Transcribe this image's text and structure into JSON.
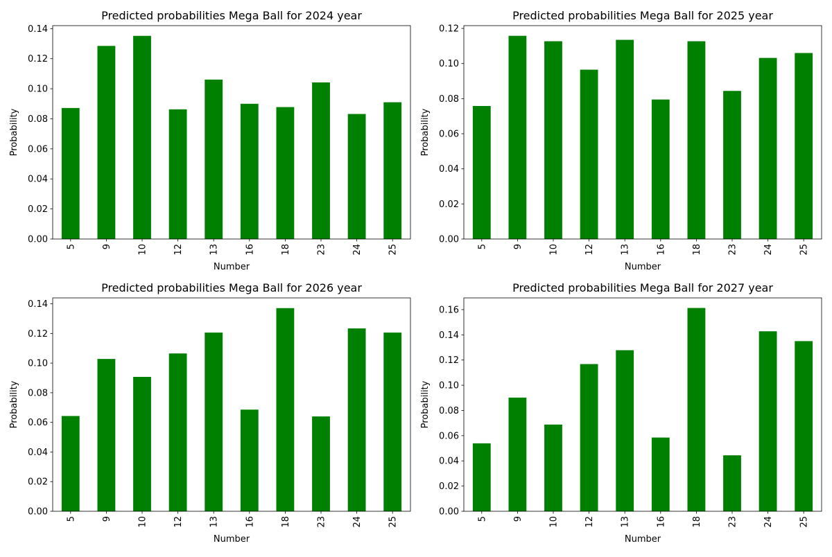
{
  "chart_data": [
    {
      "type": "bar",
      "title": "Predicted probabilities Mega Ball for 2024 year",
      "xlabel": "Number",
      "ylabel": "Probability",
      "categories": [
        "5",
        "9",
        "10",
        "12",
        "13",
        "16",
        "18",
        "23",
        "24",
        "25"
      ],
      "values": [
        0.0872,
        0.1285,
        0.1352,
        0.0863,
        0.1061,
        0.09,
        0.0878,
        0.1042,
        0.0832,
        0.091
      ],
      "ylim": [
        0,
        0.142
      ],
      "yticks": [
        "0.00",
        "0.02",
        "0.04",
        "0.06",
        "0.08",
        "0.10",
        "0.12",
        "0.14"
      ],
      "grid": false,
      "bar_color": "#008000"
    },
    {
      "type": "bar",
      "title": "Predicted probabilities Mega Ball for 2025 year",
      "xlabel": "Number",
      "ylabel": "Probability",
      "categories": [
        "5",
        "9",
        "10",
        "12",
        "13",
        "16",
        "18",
        "23",
        "24",
        "25"
      ],
      "values": [
        0.0758,
        0.1158,
        0.1127,
        0.0965,
        0.1135,
        0.0795,
        0.1127,
        0.0844,
        0.1032,
        0.106
      ],
      "ylim": [
        0,
        0.1216
      ],
      "yticks": [
        "0.00",
        "0.02",
        "0.04",
        "0.06",
        "0.08",
        "0.10",
        "0.12"
      ],
      "grid": false,
      "bar_color": "#008000"
    },
    {
      "type": "bar",
      "title": "Predicted probabilities Mega Ball for 2026 year",
      "xlabel": "Number",
      "ylabel": "Probability",
      "categories": [
        "5",
        "9",
        "10",
        "12",
        "13",
        "16",
        "18",
        "23",
        "24",
        "25"
      ],
      "values": [
        0.0643,
        0.1028,
        0.0907,
        0.1065,
        0.1206,
        0.0686,
        0.1371,
        0.064,
        0.1234,
        0.1206
      ],
      "ylim": [
        0,
        0.144
      ],
      "yticks": [
        "0.00",
        "0.02",
        "0.04",
        "0.06",
        "0.08",
        "0.10",
        "0.12",
        "0.14"
      ],
      "grid": false,
      "bar_color": "#008000"
    },
    {
      "type": "bar",
      "title": "Predicted probabilities Mega Ball for 2027 year",
      "xlabel": "Number",
      "ylabel": "Probability",
      "categories": [
        "5",
        "9",
        "10",
        "12",
        "13",
        "16",
        "18",
        "23",
        "24",
        "25"
      ],
      "values": [
        0.0539,
        0.0902,
        0.0688,
        0.1168,
        0.1278,
        0.0585,
        0.1613,
        0.0444,
        0.1428,
        0.135
      ],
      "ylim": [
        0,
        0.1693
      ],
      "yticks": [
        "0.00",
        "0.02",
        "0.04",
        "0.06",
        "0.08",
        "0.10",
        "0.12",
        "0.14",
        "0.16"
      ],
      "grid": false,
      "bar_color": "#008000"
    }
  ]
}
